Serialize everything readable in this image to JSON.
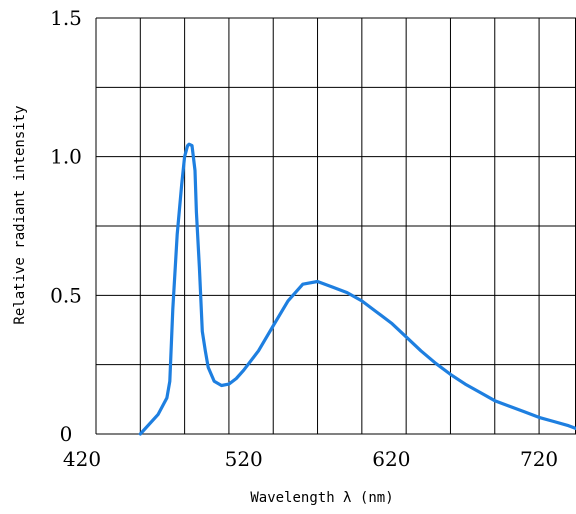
{
  "chart_data": {
    "type": "line",
    "title": "",
    "xlabel": "Wavelength λ (nm)",
    "ylabel": "Relative radiant intensity",
    "xlim": [
      420,
      745
    ],
    "ylim": [
      0,
      1.5
    ],
    "x_ticks": [
      420,
      520,
      620,
      720
    ],
    "x_tick_labels": [
      "420",
      "520",
      "620",
      "720"
    ],
    "y_ticks": [
      0,
      0.5,
      1.0,
      1.5
    ],
    "y_tick_labels": [
      "0",
      "0.5",
      "1.0",
      "1.5"
    ],
    "x_grid": [
      420,
      450,
      480,
      510,
      540,
      570,
      600,
      630,
      660,
      690,
      720
    ],
    "y_grid": [
      0,
      0.25,
      0.5,
      0.75,
      1.0,
      1.25,
      1.5
    ],
    "grid": true,
    "line_color": "#1e7fe0",
    "series": [
      {
        "name": "",
        "x": [
          450,
          462,
          468,
          470,
          472,
          475,
          478,
          480,
          482,
          483,
          485,
          487,
          488,
          490,
          492,
          494,
          496,
          500,
          505,
          510,
          515,
          520,
          530,
          540,
          550,
          560,
          570,
          580,
          590,
          600,
          610,
          620,
          630,
          640,
          650,
          660,
          670,
          680,
          690,
          700,
          710,
          720,
          730,
          740,
          745
        ],
        "y": [
          0.0,
          0.07,
          0.13,
          0.19,
          0.45,
          0.72,
          0.9,
          1.0,
          1.04,
          1.045,
          1.04,
          0.95,
          0.8,
          0.6,
          0.37,
          0.3,
          0.24,
          0.19,
          0.175,
          0.18,
          0.2,
          0.23,
          0.3,
          0.39,
          0.48,
          0.54,
          0.55,
          0.53,
          0.51,
          0.48,
          0.44,
          0.4,
          0.35,
          0.3,
          0.255,
          0.215,
          0.18,
          0.15,
          0.12,
          0.1,
          0.08,
          0.06,
          0.045,
          0.03,
          0.02
        ]
      }
    ]
  }
}
